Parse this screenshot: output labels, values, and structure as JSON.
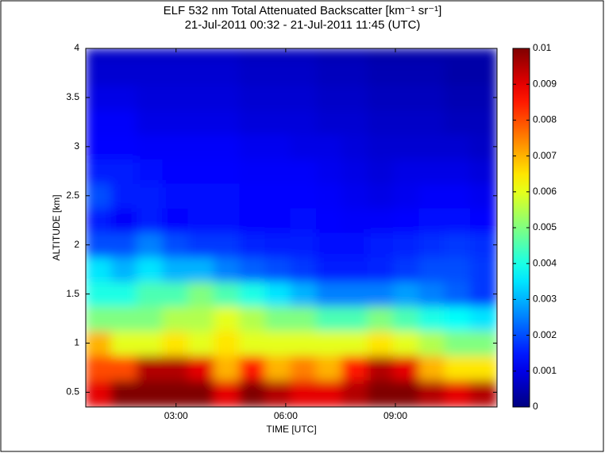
{
  "chart_data": {
    "type": "heatmap",
    "title": "ELF 532 nm Total Attenuated Backscatter [km⁻¹ sr⁻¹]",
    "subtitle": "21-Jul-2011 00:32 - 21-Jul-2011 11:45 (UTC)",
    "x_label": "TIME [UTC]",
    "y_label": "ALTITUDE [km]",
    "colormap": "jet",
    "x": [
      0.88,
      1.58,
      2.28,
      2.98,
      3.69,
      4.39,
      5.09,
      5.79,
      6.49,
      7.19,
      7.89,
      8.59,
      9.3,
      10.0,
      10.7,
      11.4
    ],
    "y": [
      0.5,
      0.75,
      1,
      1.25,
      1.5,
      1.75,
      2,
      2.25,
      2.5,
      2.75,
      3,
      3.25,
      3.5,
      3.75,
      4
    ],
    "z": [
      [
        0.009,
        0.01,
        0.01,
        0.01,
        0.01,
        0.009,
        0.01,
        0.0095,
        0.009,
        0.009,
        0.0095,
        0.01,
        0.01,
        0.0095,
        0.009,
        0.0095
      ],
      [
        0.008,
        0.008,
        0.0095,
        0.0095,
        0.009,
        0.007,
        0.0085,
        0.007,
        0.0075,
        0.007,
        0.0085,
        0.0095,
        0.009,
        0.007,
        0.0065,
        0.0065
      ],
      [
        0.007,
        0.006,
        0.006,
        0.0065,
        0.006,
        0.0065,
        0.006,
        0.006,
        0.006,
        0.006,
        0.006,
        0.0065,
        0.006,
        0.0055,
        0.005,
        0.005
      ],
      [
        0.005,
        0.005,
        0.005,
        0.0055,
        0.0055,
        0.006,
        0.0055,
        0.005,
        0.005,
        0.0045,
        0.0045,
        0.005,
        0.0045,
        0.004,
        0.0038,
        0.0035
      ],
      [
        0.004,
        0.004,
        0.0045,
        0.0045,
        0.005,
        0.0045,
        0.004,
        0.0035,
        0.003,
        0.0025,
        0.0025,
        0.0025,
        0.0028,
        0.0025,
        0.0022,
        0.0018
      ],
      [
        0.0035,
        0.003,
        0.0035,
        0.003,
        0.003,
        0.0025,
        0.0022,
        0.002,
        0.0018,
        0.0015,
        0.0015,
        0.0016,
        0.0018,
        0.002,
        0.002,
        0.0018
      ],
      [
        0.002,
        0.002,
        0.0025,
        0.002,
        0.0018,
        0.0018,
        0.0016,
        0.0015,
        0.0015,
        0.0014,
        0.0014,
        0.0015,
        0.0016,
        0.0017,
        0.0018,
        0.0017
      ],
      [
        0.0015,
        0.0012,
        0.0015,
        0.0013,
        0.0014,
        0.0014,
        0.0013,
        0.0013,
        0.0014,
        0.0013,
        0.0012,
        0.0012,
        0.0013,
        0.0014,
        0.0014,
        0.0013
      ],
      [
        0.002,
        0.0015,
        0.0015,
        0.0014,
        0.0014,
        0.0014,
        0.0013,
        0.0013,
        0.0013,
        0.0012,
        0.0011,
        0.001,
        0.0011,
        0.0012,
        0.0012,
        0.0011
      ],
      [
        0.0015,
        0.0015,
        0.0014,
        0.0013,
        0.0013,
        0.0013,
        0.0012,
        0.0012,
        0.0012,
        0.0011,
        0.001,
        0.0009,
        0.001,
        0.001,
        0.001,
        0.0009
      ],
      [
        0.0013,
        0.0013,
        0.0012,
        0.0012,
        0.0012,
        0.0012,
        0.0011,
        0.0011,
        0.001,
        0.001,
        0.0009,
        0.0008,
        0.0008,
        0.0008,
        0.0008,
        0.0007
      ],
      [
        0.0012,
        0.0012,
        0.001,
        0.001,
        0.001,
        0.001,
        0.0009,
        0.0009,
        0.0009,
        0.0008,
        0.0008,
        0.0007,
        0.0007,
        0.0007,
        0.0006,
        0.0006
      ],
      [
        0.001,
        0.001,
        0.0009,
        0.0009,
        0.0009,
        0.0009,
        0.0008,
        0.0008,
        0.0008,
        0.0007,
        0.0007,
        0.0006,
        0.0006,
        0.0006,
        0.0005,
        0.0005
      ],
      [
        0.0008,
        0.0008,
        0.0008,
        0.0008,
        0.0008,
        0.0008,
        0.0007,
        0.0007,
        0.0007,
        0.0006,
        0.0006,
        0.0005,
        0.0005,
        0.0005,
        0.0004,
        0.0004
      ],
      [
        0.0007,
        0.0007,
        0.0007,
        0.0007,
        0.0007,
        0.0007,
        0.0006,
        0.0006,
        0.0006,
        0.0005,
        0.0005,
        0.0004,
        0.0004,
        0.0004,
        0.0004,
        0.0004
      ]
    ],
    "xlim": [
      0.53,
      11.78
    ],
    "xticks": [
      {
        "value": 3,
        "label": "03:00"
      },
      {
        "value": 6,
        "label": "06:00"
      },
      {
        "value": 9,
        "label": "09:00"
      }
    ],
    "ylim": [
      0.35,
      4
    ],
    "yticks": [
      0.5,
      1,
      1.5,
      2,
      2.5,
      3,
      3.5,
      4
    ],
    "zlim": [
      0,
      0.01
    ],
    "zticks": [
      0,
      0.001,
      0.002,
      0.003,
      0.004,
      0.005,
      0.006,
      0.007,
      0.008,
      0.009,
      0.01
    ]
  }
}
